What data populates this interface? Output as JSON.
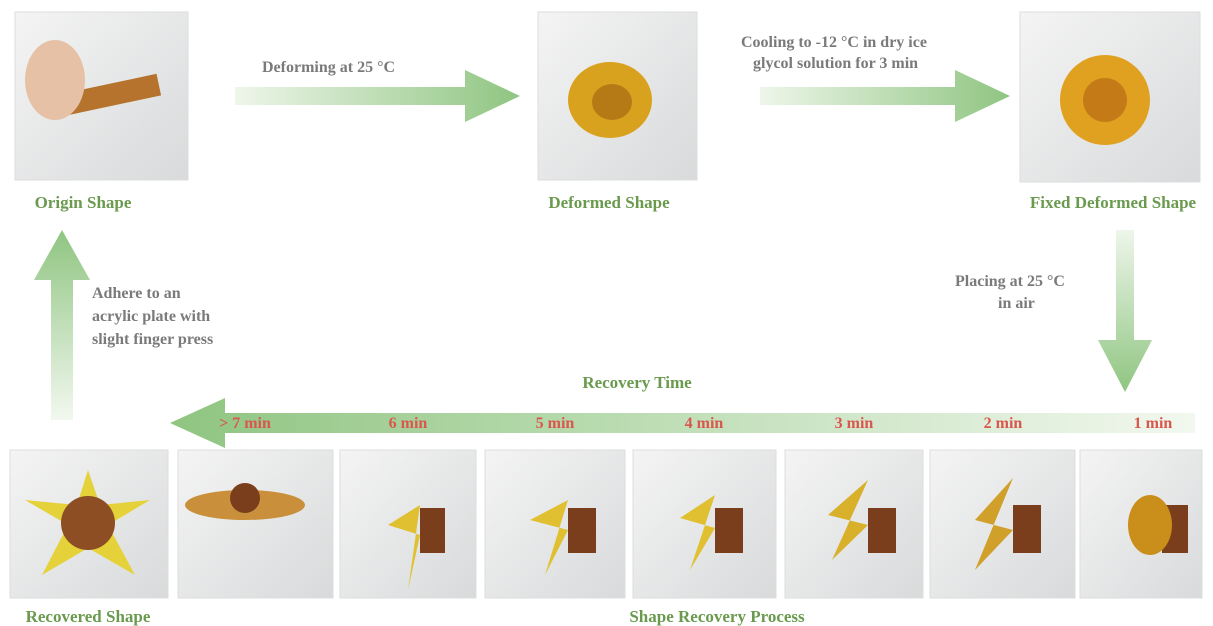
{
  "stages": {
    "origin": "Origin Shape",
    "deformed": "Deformed Shape",
    "fixed": "Fixed Deformed Shape",
    "recovered": "Recovered Shape",
    "process": "Shape Recovery Process"
  },
  "steps": {
    "deforming": "Deforming at 25 °C",
    "cooling": [
      "Cooling to -12 °C in dry ice",
      "glycol solution for 3 min"
    ],
    "placing": [
      "Placing at 25 °C",
      "in air"
    ],
    "adhere": [
      "Adhere to an",
      "acrylic plate with",
      "slight finger press"
    ]
  },
  "recovery_time": {
    "title": "Recovery Time",
    "labels": [
      "> 7 min",
      "6 min",
      "5 min",
      "4 min",
      "3 min",
      "2 min",
      "1 min"
    ]
  }
}
